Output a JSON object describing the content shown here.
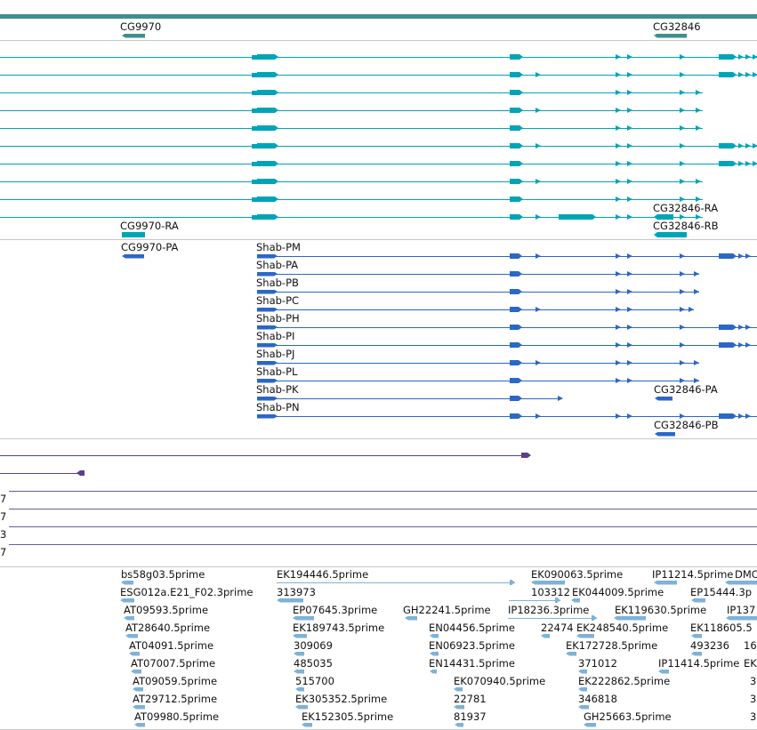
{
  "colors": {
    "gene": "#3f8f8c",
    "transcript": "#00a4b8",
    "protein": "#2b67c6",
    "cdna": "#5a3f8f",
    "cdna_line": "#6e5a9c",
    "est": "#7eb2d8",
    "separator": "#c8c8c8"
  },
  "gene_track": {
    "genes": [
      {
        "label": "CG9970",
        "strand": "-"
      },
      {
        "label": "CG32846",
        "strand": "-"
      }
    ]
  },
  "transcript_track": {
    "cg9970_label": "CG9970-RA",
    "cg32846_labels": [
      "CG32846-RA",
      "CG32846-RB"
    ]
  },
  "protein_track": {
    "cg9970_label": "CG9970-PA",
    "isoforms": [
      {
        "label": "Shab-PM"
      },
      {
        "label": "Shab-PA"
      },
      {
        "label": "Shab-PB"
      },
      {
        "label": "Shab-PC"
      },
      {
        "label": "Shab-PH"
      },
      {
        "label": "Shab-PI"
      },
      {
        "label": "Shab-PJ"
      },
      {
        "label": "Shab-PL"
      },
      {
        "label": "Shab-PK"
      },
      {
        "label": "Shab-PN"
      }
    ],
    "cg32846_labels": [
      "CG32846-PA",
      "CG32846-PB"
    ]
  },
  "cdna_track": {
    "row_labels": [
      "7",
      "7",
      "3",
      "7"
    ]
  },
  "est_track": {
    "labels": [
      "bs58g03.5prime",
      "ESG012a.E21_F02.3prime",
      "AT09593.5prime",
      "AT28640.5prime",
      "AT04091.5prime",
      "AT07007.5prime",
      "AT09059.5prime",
      "AT29712.5prime",
      "AT09980.5prime",
      "EK194446.5prime",
      "313973",
      "EP07645.3prime",
      "EK189743.5prime",
      "309069",
      "485035",
      "515700",
      "EK305352.5prime",
      "EK152305.5prime",
      "GH22241.5prime",
      "EN04456.5prime",
      "EN06923.5prime",
      "EN14431.5prime",
      "EK070940.5prime",
      "22781",
      "81937",
      "EK090063.5prime",
      "103312",
      "IP18236.3prime",
      "22474",
      "EK044009.5prime",
      "EK248540.5prime",
      "EK172728.5prime",
      "371012",
      "EK222862.5prime",
      "346818",
      "GH25663.5prime",
      "IP11214.5prime",
      "DMC",
      "EP15444.3p",
      "EK119630.5prime",
      "IP137",
      "EK118605.5",
      "493236",
      "16",
      "IP11414.5prime",
      "EK",
      "3",
      "3",
      "3"
    ]
  }
}
